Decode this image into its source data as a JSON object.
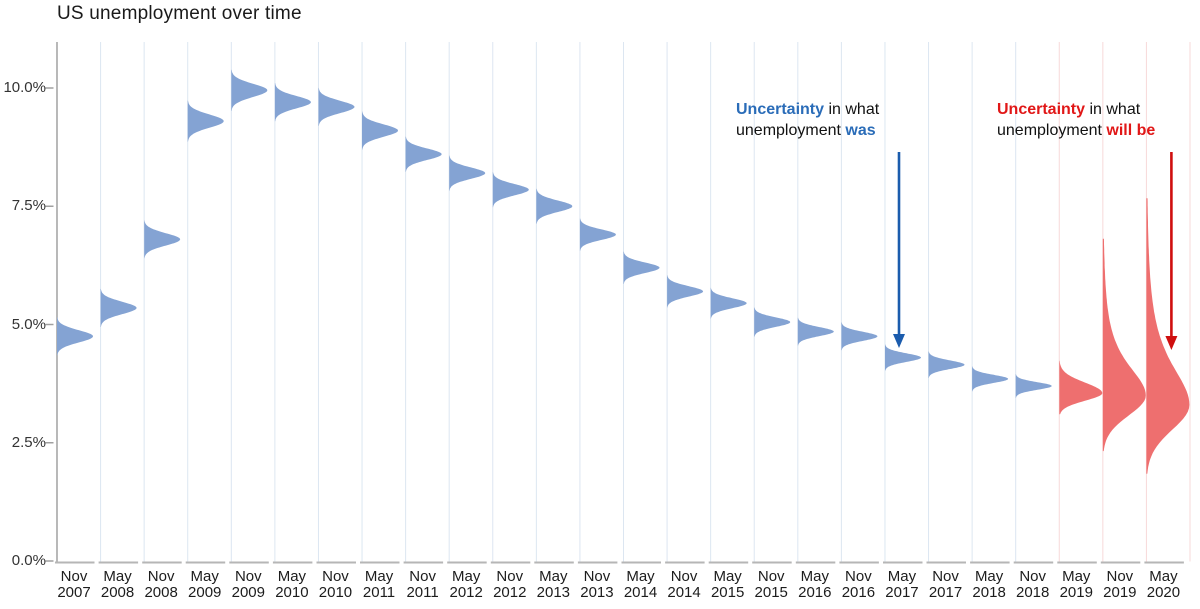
{
  "title": "US unemployment over time",
  "colors": {
    "past_fill": "#84a3d3",
    "forecast_fill": "#ee6f6f",
    "past_gridline": "#dce6f1",
    "forecast_gridline": "#f7d9d9",
    "axis_line": "#9b9b9b",
    "baseline": "#b6b6b6",
    "tick": "#a0a0a0",
    "past_accent": "#2a6cb8",
    "forecast_accent": "#e11717",
    "arrow_past": "#1b5cad",
    "arrow_forecast": "#cf0f0f",
    "title_text": "#1a1a1a",
    "axis_text": "#333333",
    "annotation_text": "#111111"
  },
  "annotations": {
    "past": {
      "bold1": "Uncertainty",
      "text1": " in what",
      "text2": "unemployment ",
      "bold2": "was"
    },
    "future": {
      "bold1": "Uncertainty",
      "text1": " in what",
      "text2": "unemployment ",
      "bold2": "will be"
    }
  },
  "y_axis": {
    "tick_labels": [
      "0.0%",
      "2.5%",
      "5.0%",
      "7.5%",
      "10.0%"
    ],
    "tick_values": [
      0,
      2.5,
      5,
      7.5,
      10
    ]
  },
  "chart_data": {
    "type": "area",
    "variant": "half-violin probability-density strips, one per time point; blue = estimated past values, red = forecast with growing uncertainty",
    "title": "US unemployment over time",
    "xlabel": "",
    "ylabel": "",
    "ylim": [
      0,
      11
    ],
    "grid": "light vertical separators per column; pink separators in forecast region",
    "legend": "none",
    "categories": [
      "Nov 2007",
      "May 2008",
      "Nov 2008",
      "May 2009",
      "Nov 2009",
      "May 2010",
      "Nov 2010",
      "May 2011",
      "Nov 2011",
      "May 2012",
      "Nov 2012",
      "May 2013",
      "Nov 2013",
      "May 2014",
      "Nov 2014",
      "May 2015",
      "Nov 2015",
      "May 2016",
      "Nov 2016",
      "May 2017",
      "Nov 2017",
      "May 2018",
      "Nov 2018",
      "May 2019",
      "Nov 2019",
      "May 2020"
    ],
    "points": [
      {
        "label": "Nov 2007",
        "month": "Nov",
        "year": "2007",
        "mode": 4.75,
        "sigma_down": 0.13,
        "sigma_up": 0.13,
        "kind": "past",
        "heavy_tail": false
      },
      {
        "label": "May 2008",
        "month": "May",
        "year": "2008",
        "mode": 5.35,
        "sigma_down": 0.13,
        "sigma_up": 0.13,
        "kind": "past",
        "heavy_tail": false
      },
      {
        "label": "Nov 2008",
        "month": "Nov",
        "year": "2008",
        "mode": 6.8,
        "sigma_down": 0.13,
        "sigma_up": 0.13,
        "kind": "past",
        "heavy_tail": false
      },
      {
        "label": "May 2009",
        "month": "May",
        "year": "2009",
        "mode": 9.3,
        "sigma_down": 0.14,
        "sigma_up": 0.14,
        "kind": "past",
        "heavy_tail": false
      },
      {
        "label": "Nov 2009",
        "month": "Nov",
        "year": "2009",
        "mode": 9.95,
        "sigma_down": 0.14,
        "sigma_up": 0.14,
        "kind": "past",
        "heavy_tail": false
      },
      {
        "label": "May 2010",
        "month": "May",
        "year": "2010",
        "mode": 9.7,
        "sigma_down": 0.13,
        "sigma_up": 0.13,
        "kind": "past",
        "heavy_tail": false
      },
      {
        "label": "Nov 2010",
        "month": "Nov",
        "year": "2010",
        "mode": 9.6,
        "sigma_down": 0.13,
        "sigma_up": 0.13,
        "kind": "past",
        "heavy_tail": false
      },
      {
        "label": "May 2011",
        "month": "May",
        "year": "2011",
        "mode": 9.1,
        "sigma_down": 0.13,
        "sigma_up": 0.13,
        "kind": "past",
        "heavy_tail": false
      },
      {
        "label": "Nov 2011",
        "month": "Nov",
        "year": "2011",
        "mode": 8.6,
        "sigma_down": 0.12,
        "sigma_up": 0.12,
        "kind": "past",
        "heavy_tail": false
      },
      {
        "label": "May 2012",
        "month": "May",
        "year": "2012",
        "mode": 8.2,
        "sigma_down": 0.12,
        "sigma_up": 0.12,
        "kind": "past",
        "heavy_tail": false
      },
      {
        "label": "Nov 2012",
        "month": "Nov",
        "year": "2012",
        "mode": 7.85,
        "sigma_down": 0.12,
        "sigma_up": 0.12,
        "kind": "past",
        "heavy_tail": false
      },
      {
        "label": "May 2013",
        "month": "May",
        "year": "2013",
        "mode": 7.5,
        "sigma_down": 0.12,
        "sigma_up": 0.12,
        "kind": "past",
        "heavy_tail": false
      },
      {
        "label": "Nov 2013",
        "month": "Nov",
        "year": "2013",
        "mode": 6.9,
        "sigma_down": 0.11,
        "sigma_up": 0.11,
        "kind": "past",
        "heavy_tail": false
      },
      {
        "label": "May 2014",
        "month": "May",
        "year": "2014",
        "mode": 6.2,
        "sigma_down": 0.11,
        "sigma_up": 0.11,
        "kind": "past",
        "heavy_tail": false
      },
      {
        "label": "Nov 2014",
        "month": "Nov",
        "year": "2014",
        "mode": 5.7,
        "sigma_down": 0.11,
        "sigma_up": 0.11,
        "kind": "past",
        "heavy_tail": false
      },
      {
        "label": "May 2015",
        "month": "May",
        "year": "2015",
        "mode": 5.45,
        "sigma_down": 0.105,
        "sigma_up": 0.105,
        "kind": "past",
        "heavy_tail": false
      },
      {
        "label": "Nov 2015",
        "month": "Nov",
        "year": "2015",
        "mode": 5.05,
        "sigma_down": 0.1,
        "sigma_up": 0.1,
        "kind": "past",
        "heavy_tail": false
      },
      {
        "label": "May 2016",
        "month": "May",
        "year": "2016",
        "mode": 4.85,
        "sigma_down": 0.095,
        "sigma_up": 0.095,
        "kind": "past",
        "heavy_tail": false
      },
      {
        "label": "Nov 2016",
        "month": "Nov",
        "year": "2016",
        "mode": 4.75,
        "sigma_down": 0.095,
        "sigma_up": 0.095,
        "kind": "past",
        "heavy_tail": false
      },
      {
        "label": "May 2017",
        "month": "May",
        "year": "2017",
        "mode": 4.3,
        "sigma_down": 0.09,
        "sigma_up": 0.09,
        "kind": "past",
        "heavy_tail": false
      },
      {
        "label": "Nov 2017",
        "month": "Nov",
        "year": "2017",
        "mode": 4.15,
        "sigma_down": 0.09,
        "sigma_up": 0.09,
        "kind": "past",
        "heavy_tail": false
      },
      {
        "label": "May 2018",
        "month": "May",
        "year": "2018",
        "mode": 3.85,
        "sigma_down": 0.085,
        "sigma_up": 0.085,
        "kind": "past",
        "heavy_tail": false
      },
      {
        "label": "Nov 2018",
        "month": "Nov",
        "year": "2018",
        "mode": 3.7,
        "sigma_down": 0.08,
        "sigma_up": 0.08,
        "kind": "past",
        "heavy_tail": false
      },
      {
        "label": "May 2019",
        "month": "May",
        "year": "2019",
        "mode": 3.55,
        "sigma_down": 0.16,
        "sigma_up": 0.22,
        "kind": "forecast",
        "heavy_tail": false
      },
      {
        "label": "Nov 2019",
        "month": "Nov",
        "year": "2019",
        "mode": 3.5,
        "sigma_down": 0.42,
        "sigma_up": 0.72,
        "kind": "forecast",
        "heavy_tail": true
      },
      {
        "label": "May 2020",
        "month": "May",
        "year": "2020",
        "mode": 3.3,
        "sigma_down": 0.52,
        "sigma_up": 0.95,
        "kind": "forecast",
        "heavy_tail": true
      }
    ]
  }
}
